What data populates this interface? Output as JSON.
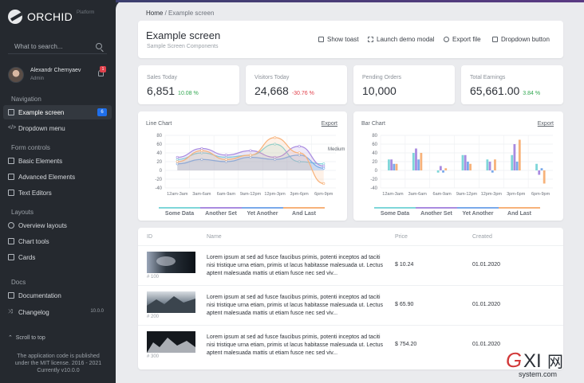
{
  "sidebar": {
    "brand": "ORCHID",
    "brand_sub": "Platform",
    "search_placeholder": "What to search...",
    "user": {
      "name": "Alexandr Chernyaev",
      "role": "Admin",
      "notifications": "1"
    },
    "sections": {
      "navigation": "Navigation",
      "form_controls": "Form controls",
      "layouts": "Layouts",
      "docs": "Docs"
    },
    "items": [
      {
        "label": "Example screen",
        "badge": "6"
      },
      {
        "label": "Dropdown menu"
      },
      {
        "label": "Basic Elements"
      },
      {
        "label": "Advanced Elements"
      },
      {
        "label": "Text Editors"
      },
      {
        "label": "Overview layouts"
      },
      {
        "label": "Chart tools"
      },
      {
        "label": "Cards"
      },
      {
        "label": "Documentation"
      },
      {
        "label": "Changelog",
        "version": "10.0.0"
      }
    ],
    "scroll_top": "Scroll to top",
    "footer": [
      "The application code is published",
      "under the MIT license. 2016 - 2021",
      "Currently v10.0.0"
    ]
  },
  "breadcrumb": {
    "home": "Home",
    "separator": "/",
    "current": "Example screen"
  },
  "header": {
    "title": "Example screen",
    "subtitle": "Sample Screen Components",
    "buttons": [
      "Show toast",
      "Launch demo modal",
      "Export file",
      "Dropdown button"
    ]
  },
  "metrics": [
    {
      "label": "Sales Today",
      "value": "6,851",
      "delta": "10.08 %",
      "delta_color": "#33a852"
    },
    {
      "label": "Visitors Today",
      "value": "24,668",
      "delta": "-30.76 %",
      "delta_color": "#e1414c"
    },
    {
      "label": "Pending Orders",
      "value": "10,000",
      "delta": "",
      "delta_color": "#33a852"
    },
    {
      "label": "Total Earnings",
      "value": "65,661.00",
      "delta": "3.84 %",
      "delta_color": "#33a852"
    }
  ],
  "charts": {
    "export_label": "Export",
    "series_colors": [
      "#7ed6d9",
      "#a98be0",
      "#7aa9ea",
      "#f7b27a"
    ]
  },
  "chart_data": [
    {
      "type": "line",
      "title": "Line Chart",
      "categories": [
        "12am-3am",
        "3am-6am",
        "6am-9am",
        "9am-12pm",
        "12pm-3pm",
        "3pm-6pm",
        "6pm-9pm"
      ],
      "y_ticks": [
        80,
        60,
        40,
        20,
        0,
        -20,
        -40
      ],
      "ylim": [
        -40,
        80
      ],
      "annotation": "Medium",
      "series": [
        {
          "name": "Some Data",
          "values": [
            25,
            40,
            30,
            35,
            60,
            20,
            15
          ]
        },
        {
          "name": "Another Set",
          "values": [
            30,
            50,
            35,
            45,
            30,
            55,
            10
          ]
        },
        {
          "name": "Yet Another",
          "values": [
            15,
            25,
            20,
            30,
            25,
            35,
            5
          ]
        },
        {
          "name": "And Last",
          "values": [
            20,
            45,
            25,
            35,
            75,
            40,
            -30
          ]
        }
      ]
    },
    {
      "type": "bar",
      "title": "Bar Chart",
      "categories": [
        "12am-3am",
        "3am-6am",
        "6am-9am",
        "9am-12pm",
        "12pm-3pm",
        "3pm-6pm",
        "6pm-9pm"
      ],
      "y_ticks": [
        80,
        60,
        40,
        20,
        0,
        -20,
        -40
      ],
      "ylim": [
        -40,
        80
      ],
      "series": [
        {
          "name": "Some Data",
          "values": [
            25,
            40,
            -5,
            35,
            25,
            35,
            15
          ]
        },
        {
          "name": "Another Set",
          "values": [
            25,
            50,
            10,
            35,
            20,
            60,
            -10
          ]
        },
        {
          "name": "Yet Another",
          "values": [
            15,
            25,
            -5,
            20,
            -5,
            20,
            5
          ]
        },
        {
          "name": "And Last",
          "values": [
            15,
            40,
            5,
            15,
            25,
            70,
            -30
          ]
        }
      ]
    }
  ],
  "table": {
    "columns": [
      "ID",
      "Name",
      "Price",
      "Created"
    ],
    "rows": [
      {
        "id": "# 100",
        "text": "Lorem ipsum at sed ad fusce faucibus primis, potenti inceptos ad taciti nisi tristique urna etiam, primis ut lacus habitasse malesuada ut. Lectus aptent malesuada mattis ut etiam fusce nec sed viv...",
        "price": "$ 10.24",
        "date": "01.01.2020"
      },
      {
        "id": "# 200",
        "text": "Lorem ipsum at sed ad fusce faucibus primis, potenti inceptos ad taciti nisi tristique urna etiam, primis ut lacus habitasse malesuada ut. Lectus aptent malesuada mattis ut etiam fusce nec sed viv...",
        "price": "$ 65.90",
        "date": "01.01.2020"
      },
      {
        "id": "# 300",
        "text": "Lorem ipsum at sed ad fusce faucibus primis, potenti inceptos ad taciti nisi tristique urna etiam, primis ut lacus habitasse malesuada ut. Lectus aptent malesuada mattis ut etiam fusce nec sed viv...",
        "price": "$ 754.20",
        "date": "01.01.2020"
      }
    ]
  },
  "watermark": {
    "text": "GXI网",
    "sub": "system.com"
  }
}
